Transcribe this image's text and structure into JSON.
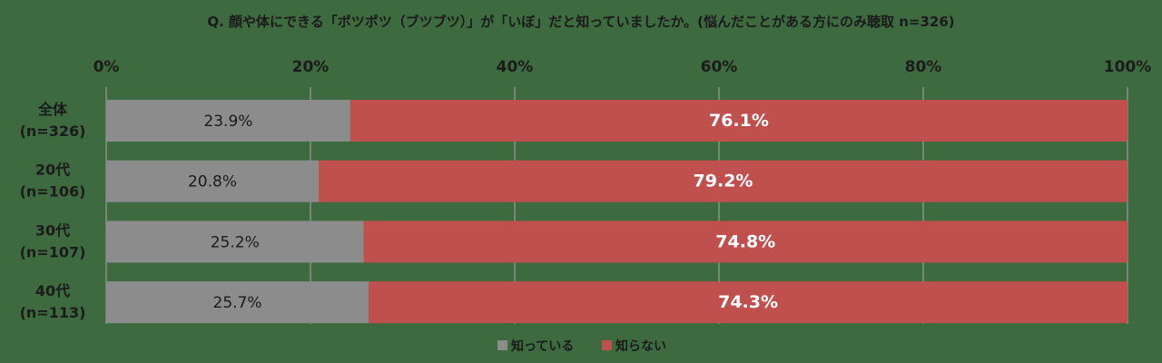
{
  "chart_data": {
    "type": "bar",
    "orientation": "horizontal",
    "stacked": true,
    "title": "Q. 顔や体にできる「ポツポツ（ブツブツ）」が「いぼ」だと知っていましたか。(悩んだことがある方にのみ聴取 n=326)",
    "xlim": [
      0,
      100
    ],
    "x_ticks": [
      "0%",
      "20%",
      "40%",
      "60%",
      "80%",
      "100%"
    ],
    "grid": true,
    "legend_position": "bottom",
    "categories": [
      [
        "全体",
        "(n=326)"
      ],
      [
        "20代",
        "(n=106)"
      ],
      [
        "30代",
        "(n=107)"
      ],
      [
        "40代",
        "(n=113)"
      ]
    ],
    "series": [
      {
        "name": "知っている",
        "color": "#8c8c8c",
        "values": [
          23.9,
          20.8,
          25.2,
          25.7
        ],
        "labels": [
          "23.9%",
          "20.8%",
          "25.2%",
          "25.7%"
        ]
      },
      {
        "name": "知らない",
        "color": "#c0504d",
        "values": [
          76.1,
          79.2,
          74.8,
          74.3
        ],
        "labels": [
          "76.1%",
          "79.2%",
          "74.8%",
          "74.3%"
        ]
      }
    ]
  }
}
